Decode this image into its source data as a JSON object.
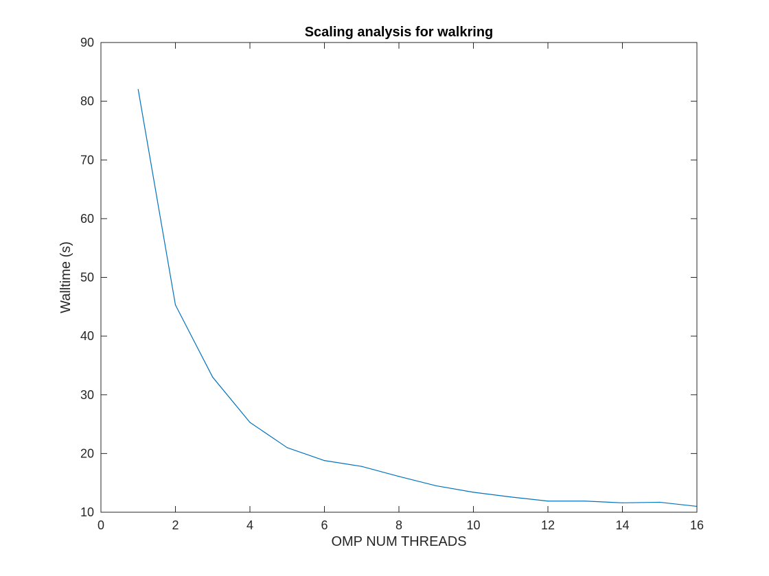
{
  "chart_data": {
    "type": "line",
    "title": "Scaling analysis for walkring",
    "xlabel": "OMP NUM THREADS",
    "ylabel": "Walltime (s)",
    "xlim": [
      0,
      16
    ],
    "ylim": [
      10,
      90
    ],
    "xticks": [
      "0",
      "2",
      "4",
      "6",
      "8",
      "10",
      "12",
      "14",
      "16"
    ],
    "yticks": [
      "10",
      "20",
      "30",
      "40",
      "50",
      "60",
      "70",
      "80",
      "90"
    ],
    "grid": false,
    "box": true,
    "series": [
      {
        "color": "#0072bd",
        "x": [
          1,
          2,
          3,
          4,
          5,
          6,
          7,
          8,
          9,
          10,
          11,
          12,
          13,
          14,
          15,
          16
        ],
        "y": [
          82.0,
          45.3,
          33.0,
          25.3,
          21.0,
          18.8,
          17.8,
          16.1,
          14.5,
          13.4,
          12.6,
          11.9,
          11.9,
          11.6,
          11.7,
          11.0
        ]
      }
    ]
  }
}
